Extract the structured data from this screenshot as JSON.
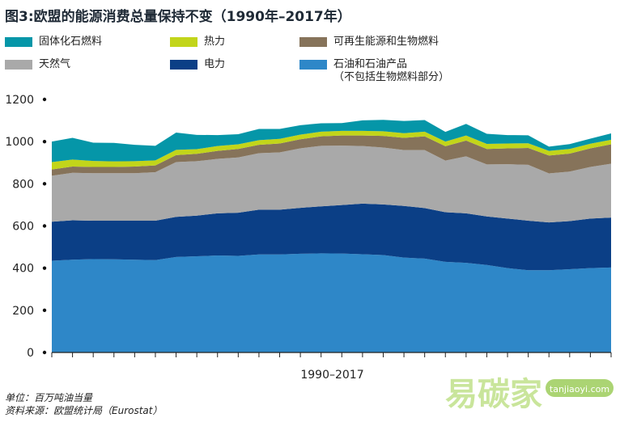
{
  "title": "图3:欧盟的能源消费总量保持不变（1990年–2017年）",
  "legend": [
    {
      "label": "固体化石燃料",
      "color": "#0596a8"
    },
    {
      "label": "热力",
      "color": "#c2d51a"
    },
    {
      "label": "可再生能源和生物燃料",
      "color": "#86735a"
    },
    {
      "label": "天然气",
      "color": "#a9a9a9"
    },
    {
      "label": "电力",
      "color": "#0b3f86"
    },
    {
      "label": "石油和石油产品",
      "sublabel": "（不包括生物燃料部分）",
      "color": "#2e87c8"
    }
  ],
  "footer": {
    "unit": "单位：百万吨油当量",
    "source": "资料来源：欧盟统计局（Eurostat）"
  },
  "watermark": {
    "text": "易碳家",
    "badge": "tanjiaoyi.com"
  },
  "chart_data": {
    "type": "area",
    "stacked": true,
    "title": "图3:欧盟的能源消费总量保持不变（1990年–2017年）",
    "xlabel": "1990–2017",
    "ylabel": "",
    "ylim": [
      0,
      1200
    ],
    "yticks": [
      0,
      200,
      400,
      600,
      800,
      1000,
      1200
    ],
    "x": [
      1990,
      1991,
      1992,
      1993,
      1994,
      1995,
      1996,
      1997,
      1998,
      1999,
      2000,
      2001,
      2002,
      2003,
      2004,
      2005,
      2006,
      2007,
      2008,
      2009,
      2010,
      2011,
      2012,
      2013,
      2014,
      2015,
      2016,
      2017
    ],
    "series": [
      {
        "name": "石油和石油产品",
        "color": "#2e87c8",
        "values": [
          435,
          440,
          443,
          442,
          440,
          438,
          453,
          456,
          460,
          458,
          465,
          465,
          468,
          470,
          469,
          466,
          462,
          450,
          445,
          430,
          425,
          415,
          400,
          390,
          390,
          395,
          400,
          403
        ]
      },
      {
        "name": "电力",
        "color": "#0b3f86",
        "values": [
          185,
          187,
          182,
          183,
          185,
          187,
          190,
          193,
          200,
          205,
          212,
          212,
          218,
          223,
          230,
          240,
          240,
          245,
          240,
          235,
          235,
          230,
          235,
          235,
          227,
          228,
          235,
          237
        ]
      },
      {
        "name": "天然气",
        "color": "#a9a9a9",
        "values": [
          218,
          225,
          225,
          225,
          225,
          230,
          260,
          258,
          258,
          262,
          268,
          272,
          282,
          287,
          282,
          273,
          270,
          265,
          275,
          245,
          270,
          247,
          258,
          265,
          232,
          235,
          245,
          255
        ]
      },
      {
        "name": "可再生能源和生物燃料",
        "color": "#86735a",
        "values": [
          30,
          30,
          30,
          30,
          32,
          32,
          33,
          35,
          38,
          40,
          40,
          42,
          43,
          45,
          48,
          50,
          55,
          58,
          65,
          68,
          75,
          73,
          75,
          80,
          85,
          85,
          88,
          92
        ]
      },
      {
        "name": "热力",
        "color": "#c2d51a",
        "values": [
          35,
          33,
          28,
          26,
          25,
          24,
          25,
          22,
          23,
          22,
          22,
          22,
          22,
          22,
          22,
          22,
          22,
          22,
          22,
          22,
          24,
          24,
          23,
          22,
          22,
          22,
          22,
          22
        ]
      },
      {
        "name": "固体化石燃料",
        "color": "#0596a8",
        "values": [
          97,
          103,
          87,
          88,
          78,
          69,
          82,
          68,
          52,
          48,
          53,
          47,
          45,
          40,
          37,
          50,
          54,
          58,
          55,
          46,
          55,
          48,
          40,
          38,
          20,
          23,
          24,
          30
        ]
      }
    ]
  }
}
